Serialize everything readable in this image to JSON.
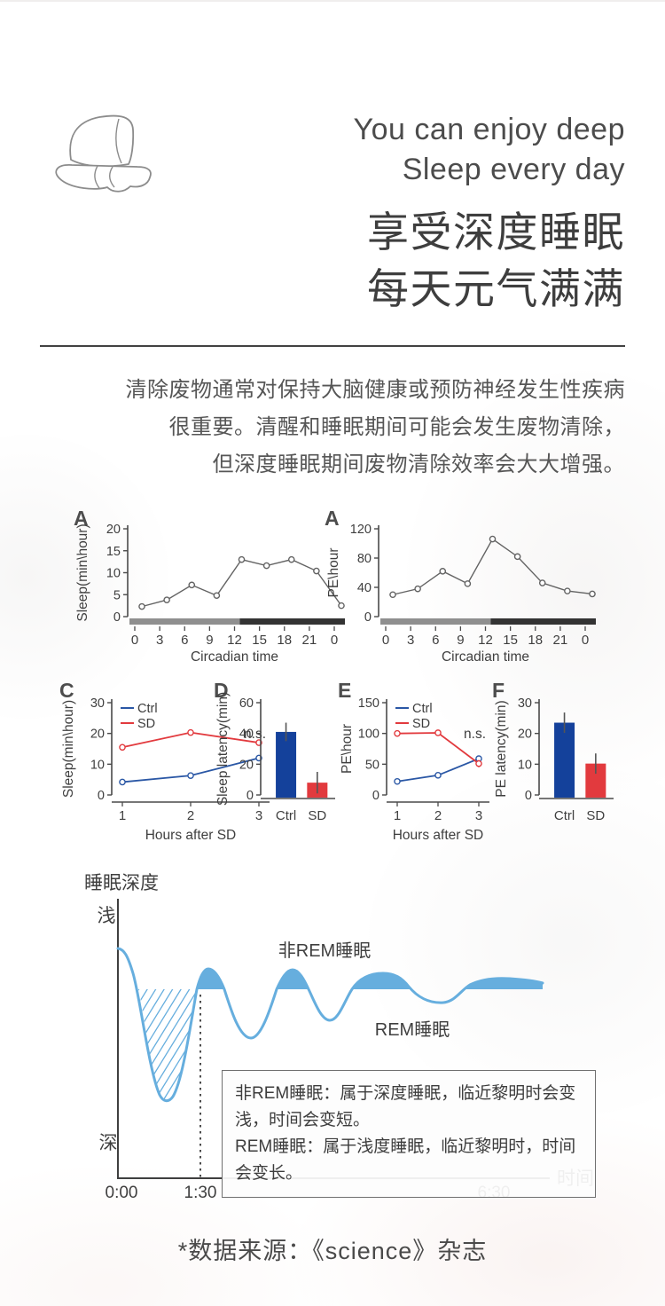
{
  "header": {
    "title_en_line1": "You can enjoy deep",
    "title_en_line2": "Sleep every day",
    "title_zh_line1": "享受深度睡眠",
    "title_zh_line2": "每天元气满满"
  },
  "intro": {
    "line1": "清除废物通常对保持大脑健康或预防神经发生性疾病",
    "line2": "很重要。清醒和睡眠期间可能会发生废物清除，",
    "line3": "但深度睡眠期间废物清除效率会大大增强。"
  },
  "colors": {
    "ctrl_blue": "#14419b",
    "line_blue": "#2a57a5",
    "sd_red": "#e23a3e",
    "gray_line": "#636363",
    "day_bar_light": "#8f8f8f",
    "day_bar_dark": "#333333",
    "wave_blue": "#66aede"
  },
  "chart_data": [
    {
      "id": "A1",
      "type": "line",
      "panel": "A",
      "ylabel": "Sleep(min\\hour)",
      "xlabel": "Circadian time",
      "ylim": [
        0,
        20
      ],
      "yticks": [
        0,
        5,
        10,
        15,
        20
      ],
      "xticklabels": [
        "0",
        "3",
        "6",
        "9",
        "12",
        "15",
        "18",
        "21",
        "0"
      ],
      "daybar": true,
      "daybar_colors": [
        "#8f8f8f",
        "#333333"
      ],
      "series": [
        {
          "name": "",
          "color": "#636363",
          "values": [
            2.3,
            3.8,
            7.2,
            4.8,
            13,
            11.6,
            13,
            10.4,
            2.5
          ]
        }
      ]
    },
    {
      "id": "A2",
      "type": "line",
      "panel": "A",
      "ylabel": "PE\\hour",
      "xlabel": "Circadian time",
      "ylim": [
        0,
        120
      ],
      "yticks": [
        0,
        40,
        80,
        120
      ],
      "xticklabels": [
        "0",
        "3",
        "6",
        "9",
        "12",
        "15",
        "18",
        "21",
        "0"
      ],
      "daybar": true,
      "daybar_colors": [
        "#8f8f8f",
        "#333333"
      ],
      "series": [
        {
          "name": "",
          "color": "#636363",
          "values": [
            30,
            38,
            62,
            45,
            106,
            82,
            46,
            35,
            31
          ]
        }
      ]
    },
    {
      "id": "C",
      "type": "line",
      "panel": "C",
      "ylabel": "Sleep(min\\hour)",
      "xlabel": "Hours after SD",
      "ylim": [
        0,
        30
      ],
      "yticks": [
        0,
        10,
        20,
        30
      ],
      "xticklabels": [
        "1",
        "2",
        "3"
      ],
      "legend": true,
      "annotation": "n.s.",
      "series": [
        {
          "name": "Ctrl",
          "color": "#2a57a5",
          "values": [
            4.2,
            6.3,
            12
          ],
          "errors": [
            0.6,
            0.7,
            0.8
          ]
        },
        {
          "name": "SD",
          "color": "#e23a3e",
          "values": [
            15.5,
            20.3,
            17
          ],
          "errors": [
            1.0,
            0.8,
            0.9
          ]
        }
      ]
    },
    {
      "id": "D",
      "type": "bar",
      "panel": "D",
      "ylabel": "Sleep latency(min)",
      "ylim": [
        0,
        60
      ],
      "yticks": [
        0,
        20,
        40,
        60
      ],
      "categories": [
        "Ctrl",
        "SD"
      ],
      "values": [
        41,
        8
      ],
      "errors": [
        6,
        7
      ],
      "colors": [
        "#14419b",
        "#e23a3e"
      ]
    },
    {
      "id": "E",
      "type": "line",
      "panel": "E",
      "ylabel": "PE\\hour",
      "xlabel": "Hours after SD",
      "ylim": [
        0,
        150
      ],
      "yticks": [
        0,
        50,
        100,
        150
      ],
      "xticklabels": [
        "1",
        "2",
        "3"
      ],
      "legend": true,
      "annotation": "n.s.",
      "series": [
        {
          "name": "Ctrl",
          "color": "#2a57a5",
          "values": [
            22,
            32,
            59
          ],
          "errors": [
            3,
            3,
            4
          ]
        },
        {
          "name": "SD",
          "color": "#e23a3e",
          "values": [
            100,
            101,
            51
          ],
          "errors": [
            4,
            4,
            6
          ]
        }
      ]
    },
    {
      "id": "F",
      "type": "bar",
      "panel": "F",
      "ylabel": "PE latency(min)",
      "ylim": [
        0,
        30
      ],
      "yticks": [
        0,
        10,
        20,
        30
      ],
      "categories": [
        "Ctrl",
        "SD"
      ],
      "values": [
        23.5,
        10.2
      ],
      "errors": [
        3.3,
        3.3
      ],
      "colors": [
        "#14419b",
        "#e23a3e"
      ]
    },
    {
      "id": "sleep-depth",
      "type": "area",
      "title": "睡眠深度",
      "y_top_label": "浅",
      "y_bottom_label": "深",
      "xlabel": "时间",
      "xticks": [
        "0:00",
        "1:30",
        "6:30"
      ],
      "annotations": {
        "nonrem": "非REM睡眠",
        "rem": "REM睡眠"
      },
      "legend_box": [
        "非REM睡眠：属于深度睡眠，临近黎明时会变浅，时间会变短。",
        "REM睡眠：属于浅度睡眠，临近黎明时，时间会变长。"
      ],
      "wave_color": "#66aede"
    }
  ],
  "footer": {
    "source_note": "*数据来源：《science》杂志"
  }
}
